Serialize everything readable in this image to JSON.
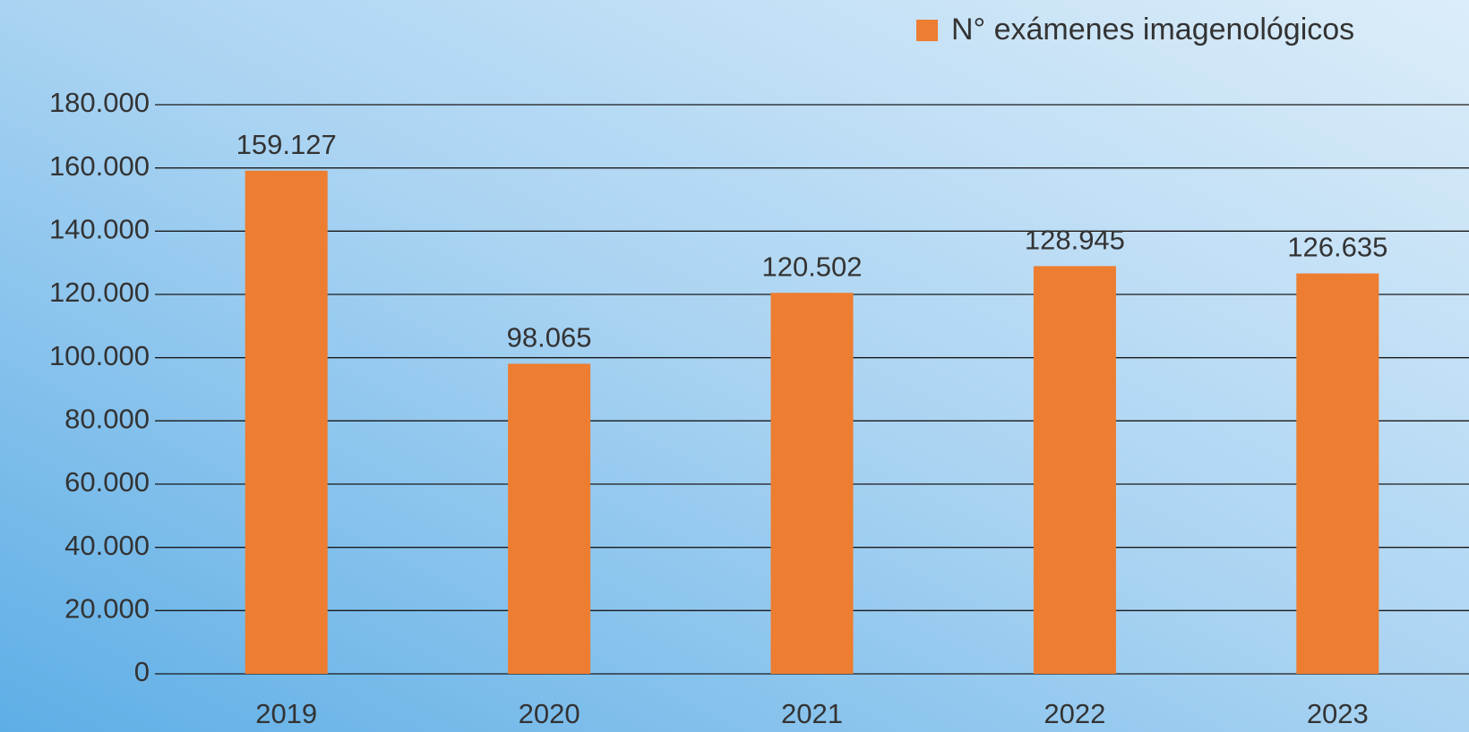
{
  "chart_data": {
    "type": "bar",
    "categories": [
      "2019",
      "2020",
      "2021",
      "2022",
      "2023"
    ],
    "series": [
      {
        "name": "N° exámenes imagenológicos",
        "color": "#ed7d31",
        "values": [
          159127,
          98065,
          120502,
          128945,
          126635
        ],
        "value_labels": [
          "159.127",
          "98.065",
          "120.502",
          "128.945",
          "126.635"
        ]
      }
    ],
    "ylim": [
      0,
      180000
    ],
    "yticks": [
      0,
      {
        "value": 20000,
        "label": "20.000"
      },
      {
        "value": 40000,
        "label": "40.000"
      },
      {
        "value": 60000,
        "label": "60.000"
      },
      {
        "value": 80000,
        "label": "80.000"
      },
      {
        "value": 100000,
        "label": "100.000"
      },
      {
        "value": 120000,
        "label": "120.000"
      },
      {
        "value": 140000,
        "label": "140.000"
      },
      {
        "value": 160000,
        "label": "160.000"
      },
      {
        "value": 180000,
        "label": "180.000"
      }
    ],
    "grid": true,
    "legend": "top-right"
  }
}
